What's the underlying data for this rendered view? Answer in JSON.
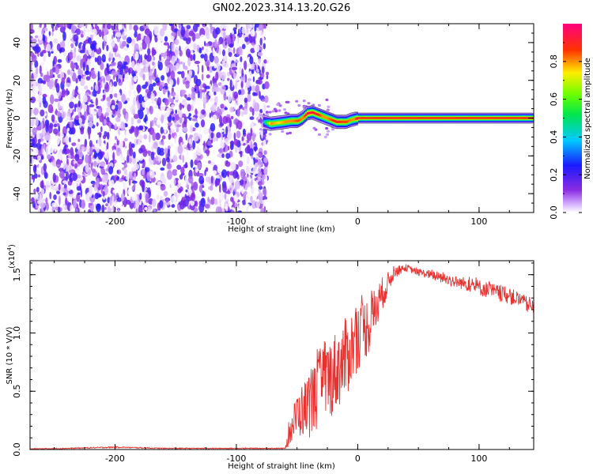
{
  "figure_title": "GN02.2023.314.13.20.G26",
  "chart_data": [
    {
      "type": "heatmap",
      "title": "GN02.2023.314.13.20.G26",
      "xlabel": "Height of straight line (km)",
      "ylabel": "Frequency (Hz)",
      "xlim": [
        -270,
        145
      ],
      "ylim": [
        -50,
        50
      ],
      "xticks": [
        -200,
        -100,
        0,
        100
      ],
      "yticks": [
        -40,
        -20,
        0,
        20,
        40
      ],
      "colorbar": {
        "label": "Normalized spectral amplitude",
        "range": [
          0.0,
          1.0
        ],
        "ticks": [
          0.0,
          0.2,
          0.4,
          0.6,
          0.8
        ],
        "colormap": "rainbow (white-violet-blue-cyan-green-yellow-red-magenta)"
      },
      "noise_region_x": [
        -270,
        -77
      ],
      "signal_trace": {
        "x": [
          -78,
          -72,
          -66,
          -60,
          -55,
          -50,
          -46,
          -42,
          -38,
          -34,
          -30,
          -26,
          -22,
          -18,
          -14,
          -10,
          -6,
          -3,
          0,
          20,
          50,
          100,
          145
        ],
        "frequency": [
          -2,
          -3,
          -2.5,
          -2,
          -1.5,
          -1.5,
          0,
          2.5,
          3,
          2,
          1,
          0,
          -1,
          -2,
          -2,
          -2,
          -1,
          -0.5,
          0,
          0,
          0,
          0,
          0
        ],
        "amplitude": [
          0.4,
          0.8,
          0.75,
          0.8,
          0.8,
          0.85,
          0.8,
          0.95,
          0.9,
          0.9,
          0.8,
          0.8,
          0.85,
          0.9,
          0.85,
          0.85,
          0.8,
          0.8,
          1.0,
          1.0,
          1.0,
          1.0,
          1.0
        ]
      }
    },
    {
      "type": "line",
      "xlabel": "Height of straight line (km)",
      "ylabel": "SNR (10 * V/V)",
      "scale_label": "(x10",
      "scale_exponent": "4",
      "scale_suffix": ")",
      "xlim": [
        -270,
        145
      ],
      "ylim": [
        0,
        1.62
      ],
      "xticks": [
        -200,
        -100,
        0,
        100
      ],
      "yticks": [
        0.0,
        0.5,
        1.0,
        1.5
      ],
      "color": "#e8322f",
      "series": [
        {
          "x": [
            -270,
            -240,
            -200,
            -160,
            -130,
            -100,
            -80,
            -60,
            -56,
            -50,
            -40,
            -30,
            -20,
            -10,
            0,
            10,
            20,
            30,
            40,
            50,
            60,
            70,
            80,
            90,
            100,
            110,
            120,
            130,
            140,
            145
          ],
          "values": [
            0.005,
            0.01,
            0.02,
            0.01,
            0.01,
            0.01,
            0.01,
            0.01,
            0.15,
            0.3,
            0.38,
            0.55,
            0.65,
            0.78,
            0.98,
            1.08,
            1.33,
            1.52,
            1.56,
            1.52,
            1.5,
            1.47,
            1.44,
            1.42,
            1.39,
            1.36,
            1.33,
            1.3,
            1.24,
            1.21
          ],
          "noise_amplitude": [
            0.004,
            0.004,
            0.006,
            0.004,
            0.004,
            0.004,
            0.004,
            0.004,
            0.12,
            0.2,
            0.28,
            0.35,
            0.35,
            0.35,
            0.3,
            0.25,
            0.15,
            0.05,
            0.03,
            0.03,
            0.04,
            0.05,
            0.05,
            0.06,
            0.07,
            0.07,
            0.07,
            0.07,
            0.07,
            0.06
          ]
        }
      ]
    }
  ]
}
